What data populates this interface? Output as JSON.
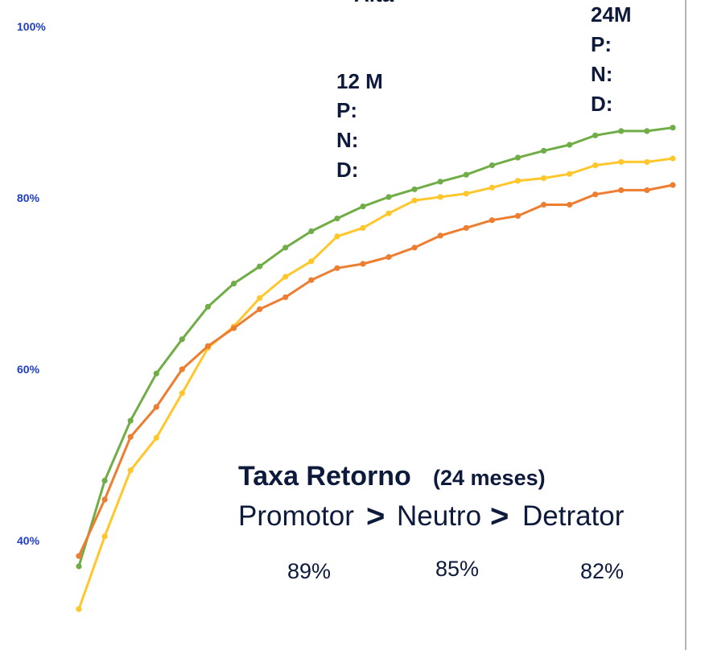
{
  "chart_data": {
    "type": "line",
    "x": [
      1,
      2,
      3,
      4,
      5,
      6,
      7,
      8,
      9,
      10,
      11,
      12,
      13,
      14,
      15,
      16,
      17,
      18,
      19,
      20,
      21,
      22,
      23,
      24
    ],
    "ylim": [
      0.315,
      1.01
    ],
    "yticks": [
      {
        "value": 1.0,
        "label": "100%"
      },
      {
        "value": 0.8,
        "label": "80%"
      },
      {
        "value": 0.6,
        "label": "60%"
      },
      {
        "value": 0.4,
        "label": "40%"
      }
    ],
    "series": [
      {
        "color": "#70ad47",
        "values": [
          0.37,
          0.47,
          0.54,
          0.595,
          0.635,
          0.673,
          0.7,
          0.72,
          0.742,
          0.761,
          0.776,
          0.79,
          0.801,
          0.81,
          0.819,
          0.827,
          0.838,
          0.847,
          0.855,
          0.862,
          0.873,
          0.878,
          0.878,
          0.882
        ]
      },
      {
        "color": "#ffc72c",
        "values": [
          0.32,
          0.405,
          0.482,
          0.52,
          0.572,
          0.625,
          0.65,
          0.683,
          0.708,
          0.726,
          0.755,
          0.765,
          0.782,
          0.797,
          0.801,
          0.805,
          0.812,
          0.82,
          0.823,
          0.828,
          0.838,
          0.842,
          0.842,
          0.846
        ]
      },
      {
        "color": "#ed7d31",
        "values": [
          0.382,
          0.448,
          0.521,
          0.556,
          0.6,
          0.627,
          0.648,
          0.67,
          0.684,
          0.704,
          0.718,
          0.723,
          0.731,
          0.742,
          0.756,
          0.765,
          0.774,
          0.779,
          0.792,
          0.792,
          0.804,
          0.809,
          0.809,
          0.815
        ]
      }
    ]
  },
  "annotations": {
    "cut_text": "Alta",
    "m12": {
      "l1": "12 M",
      "l2": "P:",
      "l3": "N:",
      "l4": "D:"
    },
    "m24": {
      "l1": "24M",
      "l2": "P:",
      "l3": "N:",
      "l4": "D:"
    }
  },
  "summary": {
    "title_main": "Taxa Retorno",
    "title_sub": "(24 meses)",
    "w1": "Promotor",
    "sep": ">",
    "w2": "Neutro",
    "w3": "Detrator",
    "p1": "89%",
    "p2": "85%",
    "p3": "82%"
  }
}
